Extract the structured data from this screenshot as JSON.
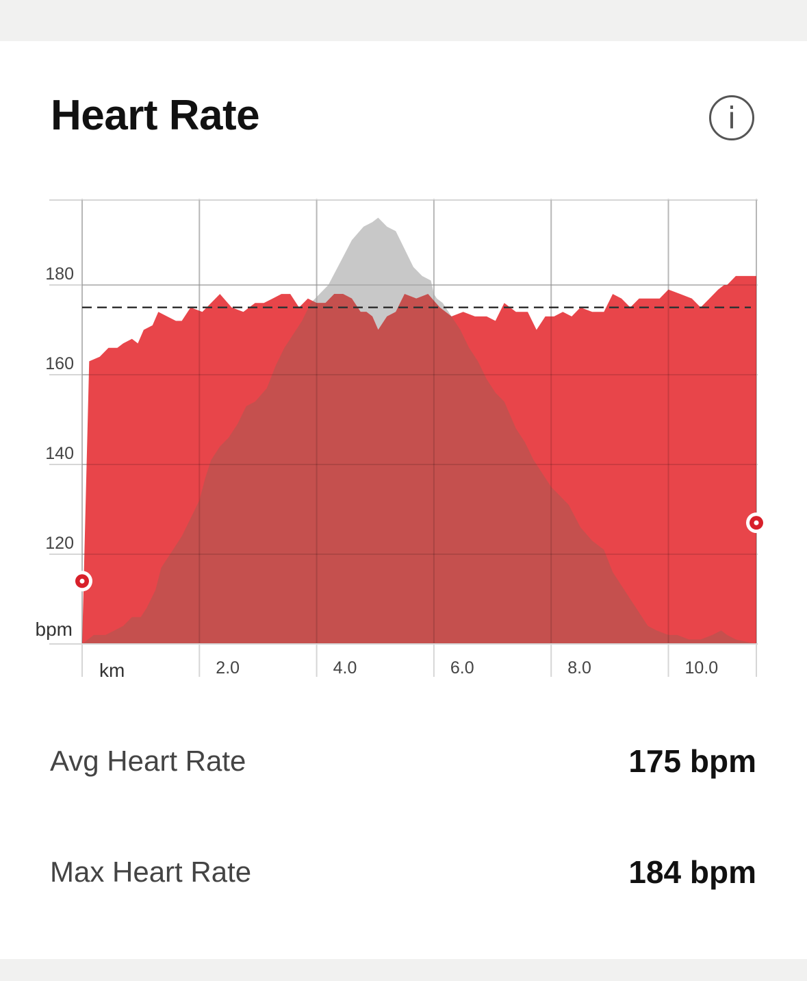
{
  "card": {
    "title": "Heart Rate",
    "info_icon": "info-icon"
  },
  "colors": {
    "heart_rate_fill": "#E8454A",
    "elevation_fill": "#C8C8C8",
    "overlap_fill": "#C5504E",
    "grid": "#D6D6D6",
    "average_line": "#333333",
    "marker": "#D8202A"
  },
  "chart_data": {
    "type": "area",
    "x_unit_label": "km",
    "y_unit_label": "bpm",
    "x_ticks": [
      "2.0",
      "4.0",
      "6.0",
      "8.0",
      "10.0"
    ],
    "y_ticks": [
      "120",
      "140",
      "160",
      "180"
    ],
    "xlim": [
      0.0,
      11.5
    ],
    "ylim": [
      100,
      199
    ],
    "average_line": 175,
    "grid": true,
    "series": [
      {
        "x": [
          0.0,
          0.12,
          0.3,
          0.45,
          0.6,
          0.7,
          0.85,
          0.95,
          1.05,
          1.2,
          1.3,
          1.45,
          1.6,
          1.7,
          1.85,
          2.05,
          2.2,
          2.35,
          2.55,
          2.75,
          2.95,
          3.1,
          3.25,
          3.4,
          3.55,
          3.7,
          3.85,
          4.0,
          4.15,
          4.3,
          4.45,
          4.6,
          4.75,
          4.85,
          4.95,
          5.05,
          5.2,
          5.35,
          5.5,
          5.7,
          5.9,
          6.1,
          6.3,
          6.5,
          6.7,
          6.9,
          7.05,
          7.2,
          7.4,
          7.6,
          7.75,
          7.9,
          8.05,
          8.2,
          8.35,
          8.5,
          8.7,
          8.9,
          9.05,
          9.2,
          9.35,
          9.5,
          9.7,
          9.85,
          10.0,
          10.2,
          10.4,
          10.55,
          10.7,
          10.85,
          10.95,
          11.0,
          11.15,
          11.5
        ],
        "values": [
          100,
          163,
          164,
          166,
          166,
          167,
          168,
          167,
          170,
          171,
          174,
          173,
          172,
          172,
          175,
          174,
          176,
          178,
          175,
          174,
          176,
          176,
          177,
          178,
          178,
          175,
          177,
          176,
          176,
          178,
          178,
          177,
          174,
          174,
          173,
          170,
          173,
          174,
          178,
          177,
          178,
          175,
          173,
          174,
          173,
          173,
          172,
          176,
          174,
          174,
          170,
          173,
          173,
          174,
          173,
          175,
          174,
          174,
          178,
          177,
          175,
          177,
          177,
          177,
          179,
          178,
          177,
          175,
          177,
          179,
          180,
          180,
          182,
          182
        ],
        "area": "heart-rate"
      },
      {
        "x": [
          0.0,
          0.2,
          0.4,
          0.55,
          0.7,
          0.85,
          1.0,
          1.1,
          1.25,
          1.35,
          1.45,
          1.55,
          1.7,
          1.85,
          2.0,
          2.1,
          2.2,
          2.35,
          2.5,
          2.65,
          2.8,
          2.95,
          3.15,
          3.3,
          3.45,
          3.6,
          3.75,
          3.9,
          4.05,
          4.2,
          4.4,
          4.6,
          4.8,
          4.95,
          5.05,
          5.2,
          5.35,
          5.5,
          5.65,
          5.8,
          5.95,
          6.0,
          6.05,
          6.15,
          6.3,
          6.45,
          6.6,
          6.75,
          6.9,
          7.05,
          7.2,
          7.4,
          7.55,
          7.7,
          7.85,
          8.0,
          8.15,
          8.3,
          8.5,
          8.7,
          8.9,
          9.05,
          9.2,
          9.35,
          9.5,
          9.65,
          9.8,
          10.0,
          10.15,
          10.35,
          10.55,
          10.75,
          10.9,
          11.0,
          11.15,
          11.5
        ],
        "values": [
          100,
          102,
          102,
          103,
          104,
          106,
          106,
          108,
          112,
          117,
          119,
          121,
          124,
          128,
          132,
          137,
          141,
          144,
          146,
          149,
          153,
          154,
          157,
          162,
          166,
          169,
          172,
          176,
          178,
          180,
          185,
          190,
          193,
          194,
          195,
          193,
          192,
          188,
          184,
          182,
          181,
          178,
          177,
          176,
          173,
          170,
          166,
          163,
          159,
          156,
          154,
          148,
          145,
          141,
          138,
          135,
          133,
          131,
          126,
          123,
          121,
          116,
          113,
          110,
          107,
          104,
          103,
          102,
          102,
          101,
          101,
          102,
          103,
          102,
          101,
          100
        ],
        "area": "elevation-profile"
      }
    ],
    "markers": [
      {
        "x": 0.0,
        "y": 114
      },
      {
        "x": 11.5,
        "y": 127
      }
    ]
  },
  "stats": [
    {
      "label": "Avg Heart Rate",
      "value": "175 bpm"
    },
    {
      "label": "Max Heart Rate",
      "value": "184 bpm"
    }
  ]
}
